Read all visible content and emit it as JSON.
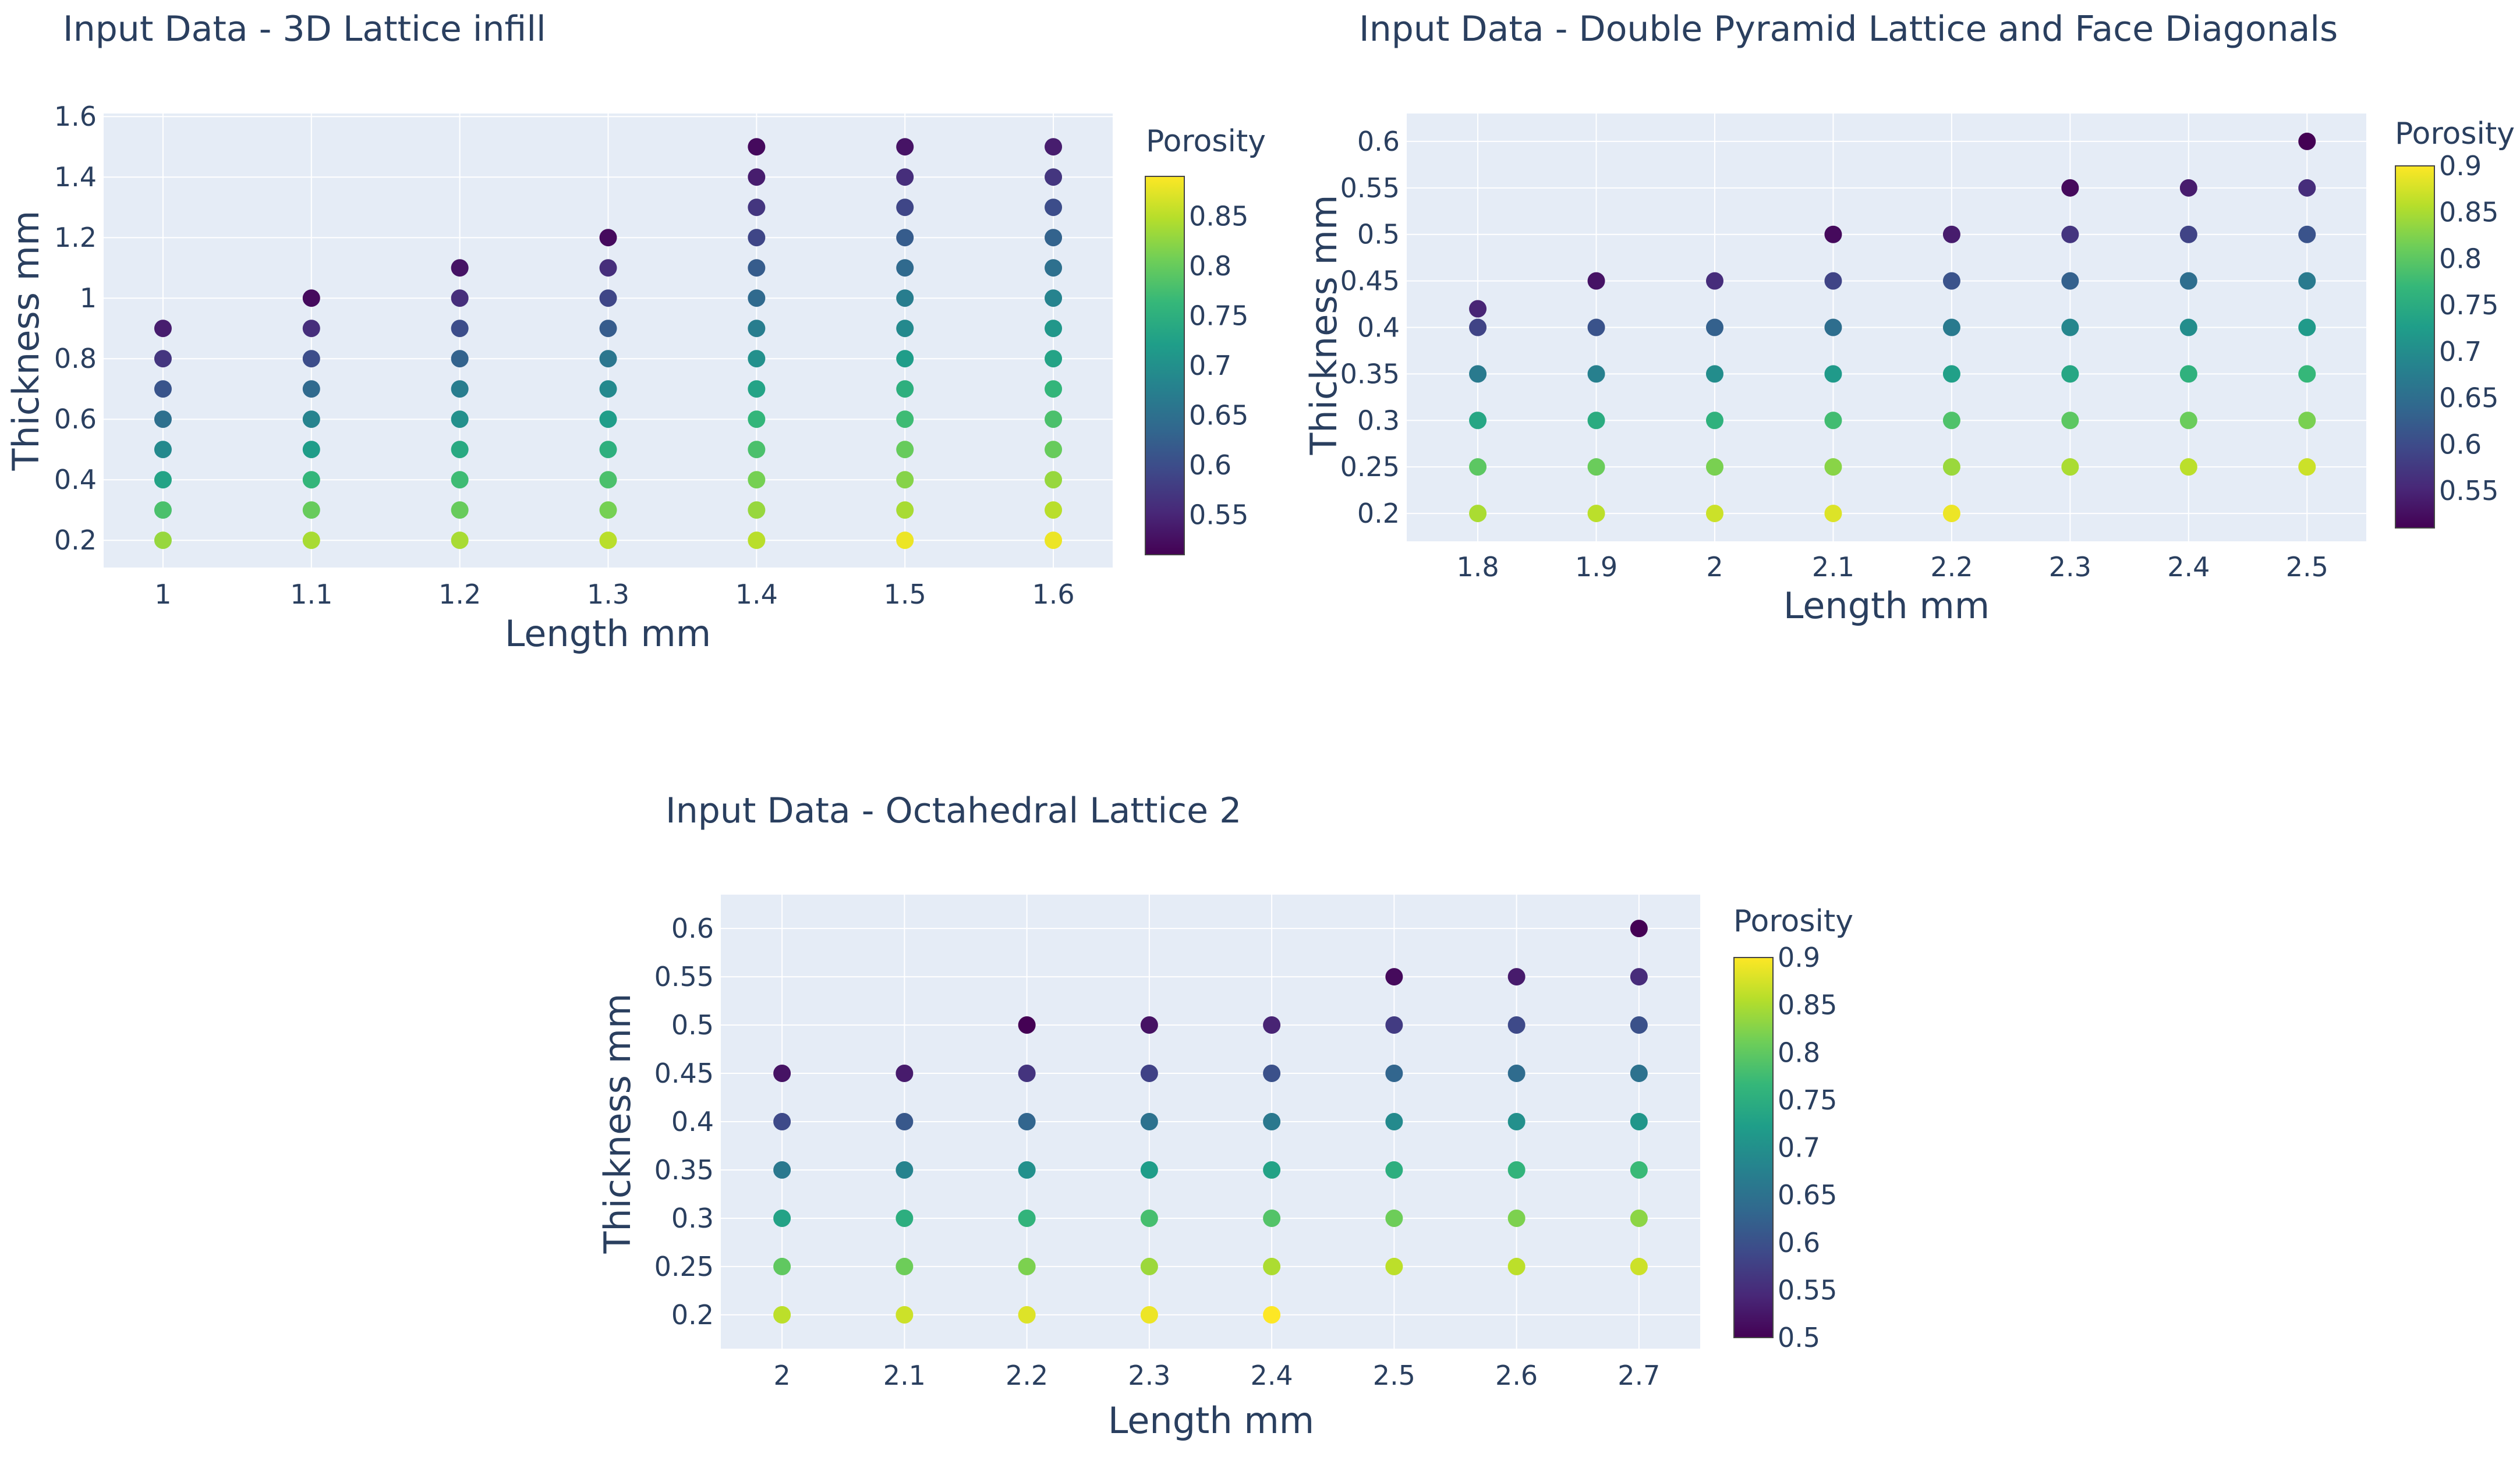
{
  "colorscale": {
    "name": "Viridis",
    "stops": [
      "#440154",
      "#482878",
      "#3e4989",
      "#31688e",
      "#26828e",
      "#1f9e89",
      "#35b779",
      "#6ece58",
      "#b5de2b",
      "#fde725"
    ]
  },
  "chart_data": [
    {
      "type": "scatter",
      "title": "Input Data - 3D Lattice infill",
      "xlabel": "Length mm",
      "ylabel": "Thickness mm",
      "colorbar_title": "Porosity",
      "xlim": [
        0.96,
        1.64
      ],
      "ylim": [
        0.11,
        1.61
      ],
      "x_ticks": [
        1,
        1.1,
        1.2,
        1.3,
        1.4,
        1.5,
        1.6
      ],
      "x_tick_labels": [
        "1",
        "1.1",
        "1.2",
        "1.3",
        "1.4",
        "1.5",
        "1.6"
      ],
      "y_ticks": [
        0.2,
        0.4,
        0.6,
        0.8,
        1,
        1.2,
        1.4,
        1.6
      ],
      "y_tick_labels": [
        "0.2",
        "0.4",
        "0.6",
        "0.8",
        "1",
        "1.2",
        "1.4",
        "1.6"
      ],
      "cmin": 0.51,
      "cmax": 0.89,
      "colorbar_ticks": [
        0.55,
        0.6,
        0.65,
        0.7,
        0.75,
        0.8,
        0.85
      ],
      "colorbar_tick_labels": [
        "0.55",
        "0.6",
        "0.65",
        "0.7",
        "0.75",
        "0.8",
        "0.85"
      ],
      "series": [
        {
          "x": 1.0,
          "y": [
            0.2,
            0.3,
            0.4,
            0.5,
            0.6,
            0.7,
            0.8,
            0.9
          ],
          "porosity": [
            0.83,
            0.78,
            0.73,
            0.69,
            0.65,
            0.61,
            0.57,
            0.54
          ]
        },
        {
          "x": 1.1,
          "y": [
            0.2,
            0.3,
            0.4,
            0.5,
            0.6,
            0.7,
            0.8,
            0.9,
            1.0
          ],
          "porosity": [
            0.84,
            0.8,
            0.76,
            0.72,
            0.68,
            0.64,
            0.6,
            0.56,
            0.52
          ]
        },
        {
          "x": 1.2,
          "y": [
            0.2,
            0.3,
            0.4,
            0.5,
            0.6,
            0.7,
            0.8,
            0.9,
            1.0,
            1.1
          ],
          "porosity": [
            0.84,
            0.8,
            0.77,
            0.74,
            0.7,
            0.67,
            0.63,
            0.6,
            0.56,
            0.53
          ]
        },
        {
          "x": 1.3,
          "y": [
            0.2,
            0.3,
            0.4,
            0.5,
            0.6,
            0.7,
            0.8,
            0.9,
            1.0,
            1.1,
            1.2
          ],
          "porosity": [
            0.85,
            0.81,
            0.78,
            0.75,
            0.72,
            0.69,
            0.66,
            0.62,
            0.59,
            0.56,
            0.52
          ]
        },
        {
          "x": 1.4,
          "y": [
            0.2,
            0.3,
            0.4,
            0.5,
            0.6,
            0.7,
            0.8,
            0.9,
            1.0,
            1.1,
            1.2,
            1.3,
            1.4,
            1.5
          ],
          "porosity": [
            0.85,
            0.83,
            0.81,
            0.78,
            0.76,
            0.73,
            0.7,
            0.67,
            0.64,
            0.62,
            0.59,
            0.57,
            0.54,
            0.52
          ]
        },
        {
          "x": 1.5,
          "y": [
            0.2,
            0.3,
            0.4,
            0.5,
            0.6,
            0.7,
            0.8,
            0.9,
            1.0,
            1.1,
            1.2,
            1.3,
            1.4,
            1.5
          ],
          "porosity": [
            0.88,
            0.84,
            0.82,
            0.8,
            0.77,
            0.75,
            0.72,
            0.69,
            0.67,
            0.64,
            0.62,
            0.59,
            0.56,
            0.53
          ]
        },
        {
          "x": 1.6,
          "y": [
            0.2,
            0.3,
            0.4,
            0.5,
            0.6,
            0.7,
            0.8,
            0.9,
            1.0,
            1.1,
            1.2,
            1.3,
            1.4,
            1.5
          ],
          "porosity": [
            0.88,
            0.85,
            0.83,
            0.8,
            0.78,
            0.76,
            0.73,
            0.71,
            0.68,
            0.65,
            0.63,
            0.6,
            0.57,
            0.54
          ]
        }
      ]
    },
    {
      "type": "scatter",
      "title": "Input Data - Double Pyramid Lattice and Face Diagonals",
      "xlabel": "Length mm",
      "ylabel": "Thickness mm",
      "colorbar_title": "Porosity",
      "xlim": [
        1.74,
        2.55
      ],
      "ylim": [
        0.17,
        0.63
      ],
      "x_ticks": [
        1.8,
        1.9,
        2,
        2.1,
        2.2,
        2.3,
        2.4,
        2.5
      ],
      "x_tick_labels": [
        "1.8",
        "1.9",
        "2",
        "2.1",
        "2.2",
        "2.3",
        "2.4",
        "2.5"
      ],
      "y_ticks": [
        0.2,
        0.25,
        0.3,
        0.35,
        0.4,
        0.45,
        0.5,
        0.55,
        0.6
      ],
      "y_tick_labels": [
        "0.2",
        "0.25",
        "0.3",
        "0.35",
        "0.4",
        "0.45",
        "0.5",
        "0.55",
        "0.6"
      ],
      "cmin": 0.51,
      "cmax": 0.9,
      "colorbar_ticks": [
        0.55,
        0.6,
        0.65,
        0.7,
        0.75,
        0.8,
        0.85,
        0.9
      ],
      "colorbar_tick_labels": [
        "0.55",
        "0.6",
        "0.65",
        "0.7",
        "0.75",
        "0.8",
        "0.85",
        "0.9"
      ],
      "series": [
        {
          "x": 1.8,
          "y": [
            0.2,
            0.25,
            0.3,
            0.35,
            0.4,
            0.42
          ],
          "porosity": [
            0.85,
            0.8,
            0.74,
            0.67,
            0.59,
            0.55
          ]
        },
        {
          "x": 1.9,
          "y": [
            0.2,
            0.25,
            0.3,
            0.35,
            0.4,
            0.45
          ],
          "porosity": [
            0.86,
            0.81,
            0.75,
            0.68,
            0.61,
            0.53
          ]
        },
        {
          "x": 2.0,
          "y": [
            0.2,
            0.25,
            0.3,
            0.35,
            0.4,
            0.45
          ],
          "porosity": [
            0.87,
            0.82,
            0.76,
            0.7,
            0.63,
            0.56
          ]
        },
        {
          "x": 2.1,
          "y": [
            0.2,
            0.25,
            0.3,
            0.35,
            0.4,
            0.45,
            0.5
          ],
          "porosity": [
            0.88,
            0.83,
            0.78,
            0.72,
            0.65,
            0.59,
            0.52
          ]
        },
        {
          "x": 2.2,
          "y": [
            0.2,
            0.25,
            0.3,
            0.35,
            0.4,
            0.45,
            0.5
          ],
          "porosity": [
            0.89,
            0.84,
            0.79,
            0.73,
            0.67,
            0.61,
            0.54
          ]
        },
        {
          "x": 2.3,
          "y": [
            0.25,
            0.3,
            0.35,
            0.4,
            0.45,
            0.5,
            0.55
          ],
          "porosity": [
            0.85,
            0.8,
            0.74,
            0.69,
            0.63,
            0.57,
            0.52
          ]
        },
        {
          "x": 2.4,
          "y": [
            0.25,
            0.3,
            0.35,
            0.4,
            0.45,
            0.5,
            0.55
          ],
          "porosity": [
            0.86,
            0.81,
            0.76,
            0.7,
            0.65,
            0.59,
            0.54
          ]
        },
        {
          "x": 2.5,
          "y": [
            0.25,
            0.3,
            0.35,
            0.4,
            0.45,
            0.5,
            0.55,
            0.6
          ],
          "porosity": [
            0.87,
            0.82,
            0.77,
            0.72,
            0.67,
            0.61,
            0.56,
            0.51
          ]
        }
      ]
    },
    {
      "type": "scatter",
      "title": "Input Data - Octahedral Lattice 2",
      "xlabel": "Length mm",
      "ylabel": "Thickness mm",
      "colorbar_title": "Porosity",
      "xlim": [
        1.95,
        2.75
      ],
      "ylim": [
        0.165,
        0.635
      ],
      "x_ticks": [
        2,
        2.1,
        2.2,
        2.3,
        2.4,
        2.5,
        2.6,
        2.7
      ],
      "x_tick_labels": [
        "2",
        "2.1",
        "2.2",
        "2.3",
        "2.4",
        "2.5",
        "2.6",
        "2.7"
      ],
      "y_ticks": [
        0.2,
        0.25,
        0.3,
        0.35,
        0.4,
        0.45,
        0.5,
        0.55,
        0.6
      ],
      "y_tick_labels": [
        "0.2",
        "0.25",
        "0.3",
        "0.35",
        "0.4",
        "0.45",
        "0.5",
        "0.55",
        "0.6"
      ],
      "cmin": 0.5,
      "cmax": 0.9,
      "colorbar_ticks": [
        0.5,
        0.55,
        0.6,
        0.65,
        0.7,
        0.75,
        0.8,
        0.85,
        0.9
      ],
      "colorbar_tick_labels": [
        "0.5",
        "0.55",
        "0.6",
        "0.65",
        "0.7",
        "0.75",
        "0.8",
        "0.85",
        "0.9"
      ],
      "series": [
        {
          "x": 2.0,
          "y": [
            0.2,
            0.25,
            0.3,
            0.35,
            0.4,
            0.45
          ],
          "porosity": [
            0.86,
            0.8,
            0.73,
            0.66,
            0.59,
            0.52
          ]
        },
        {
          "x": 2.1,
          "y": [
            0.2,
            0.25,
            0.3,
            0.35,
            0.4,
            0.45
          ],
          "porosity": [
            0.87,
            0.81,
            0.75,
            0.68,
            0.61,
            0.53
          ]
        },
        {
          "x": 2.2,
          "y": [
            0.2,
            0.25,
            0.3,
            0.35,
            0.4,
            0.45,
            0.5
          ],
          "porosity": [
            0.88,
            0.82,
            0.76,
            0.7,
            0.63,
            0.56,
            0.5
          ]
        },
        {
          "x": 2.3,
          "y": [
            0.2,
            0.25,
            0.3,
            0.35,
            0.4,
            0.45,
            0.5
          ],
          "porosity": [
            0.89,
            0.84,
            0.78,
            0.72,
            0.65,
            0.58,
            0.52
          ]
        },
        {
          "x": 2.4,
          "y": [
            0.2,
            0.25,
            0.3,
            0.35,
            0.4,
            0.45,
            0.5
          ],
          "porosity": [
            0.9,
            0.85,
            0.79,
            0.73,
            0.66,
            0.6,
            0.54
          ]
        },
        {
          "x": 2.5,
          "y": [
            0.25,
            0.3,
            0.35,
            0.4,
            0.45,
            0.5,
            0.55
          ],
          "porosity": [
            0.86,
            0.81,
            0.75,
            0.69,
            0.63,
            0.57,
            0.51
          ]
        },
        {
          "x": 2.6,
          "y": [
            0.25,
            0.3,
            0.35,
            0.4,
            0.45,
            0.5,
            0.55
          ],
          "porosity": [
            0.86,
            0.82,
            0.76,
            0.7,
            0.64,
            0.59,
            0.53
          ]
        },
        {
          "x": 2.7,
          "y": [
            0.25,
            0.3,
            0.35,
            0.4,
            0.45,
            0.5,
            0.55,
            0.6
          ],
          "porosity": [
            0.87,
            0.83,
            0.77,
            0.71,
            0.65,
            0.6,
            0.55,
            0.5
          ]
        }
      ]
    }
  ]
}
